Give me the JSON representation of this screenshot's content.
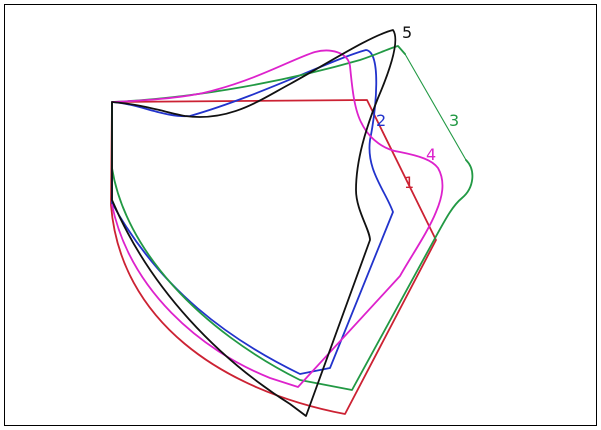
{
  "curves": [
    {
      "label": "1",
      "color": "#cc2233"
    },
    {
      "label": "2",
      "color": "#2233cc"
    },
    {
      "label": "3",
      "color": "#229944"
    },
    {
      "label": "4",
      "color": "#dd22cc"
    },
    {
      "label": "5",
      "color": "#111111"
    }
  ]
}
